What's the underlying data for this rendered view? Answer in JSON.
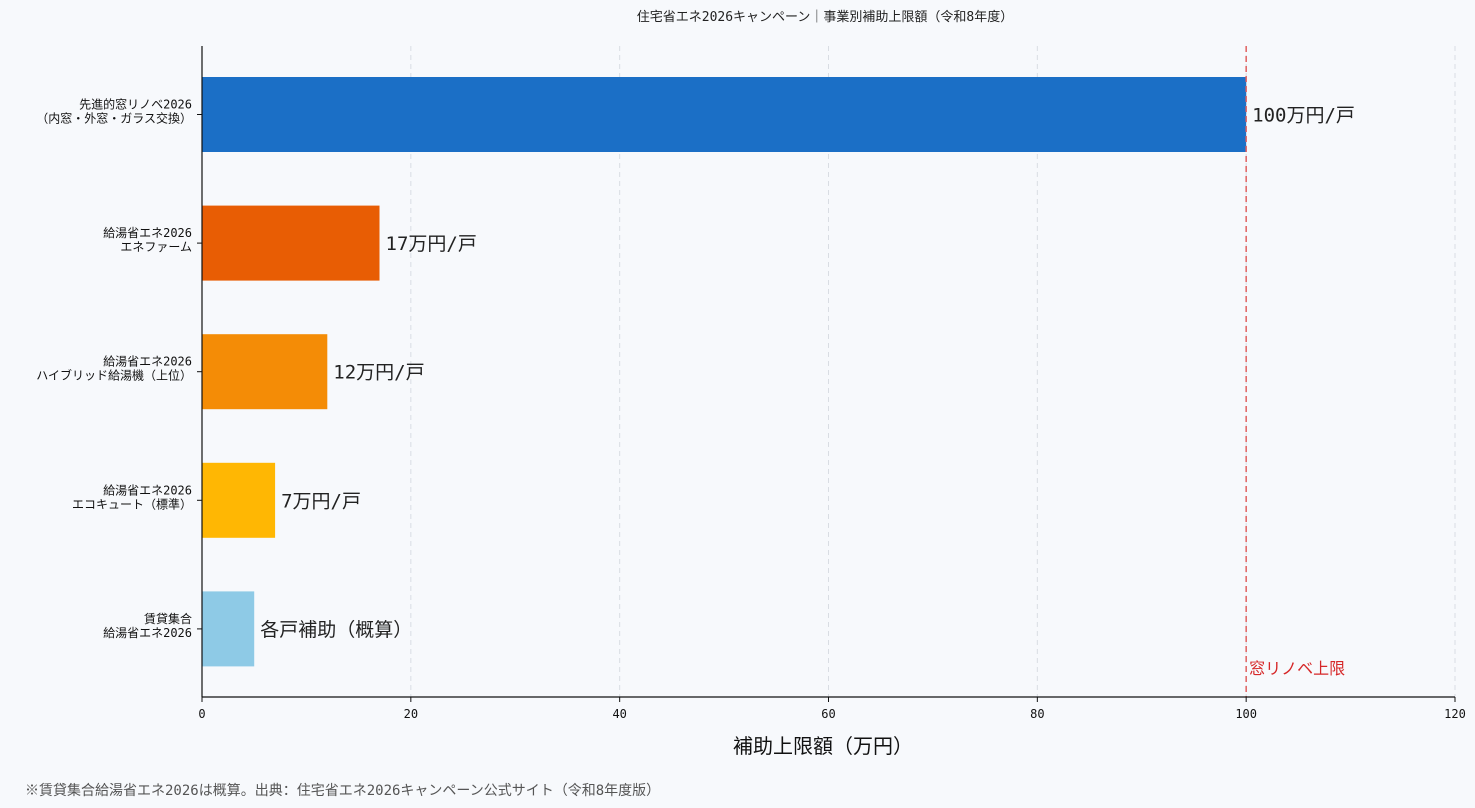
{
  "chart_data": {
    "type": "bar",
    "orientation": "horizontal",
    "title": "住宅省エネ2026キャンペーン｜事業別補助上限額（令和8年度）",
    "xlabel": "補助上限額（万円）",
    "ylabel": "",
    "xlim": [
      0,
      120
    ],
    "xticks": [
      0,
      20,
      40,
      60,
      80,
      100,
      120
    ],
    "grid": "vertical-dashed",
    "categories": [
      [
        "先進的窓リノベ2026",
        "（内窓・外窓・ガラス交換）"
      ],
      [
        "給湯省エネ2026",
        "エネファーム"
      ],
      [
        "給湯省エネ2026",
        "ハイブリッド給湯機（上位）"
      ],
      [
        "給湯省エネ2026",
        "エコキュート（標準）"
      ],
      [
        "賃貸集合",
        "給湯省エネ2026"
      ]
    ],
    "values": [
      100,
      17,
      12,
      7,
      5
    ],
    "value_labels": [
      "100万円/戸",
      "17万円/戸",
      "12万円/戸",
      "7万円/戸",
      "各戸補助（概算）"
    ],
    "colors": [
      "#1b6fc6",
      "#e85d04",
      "#f48c06",
      "#ffb703",
      "#8ecae6"
    ],
    "reference_line": {
      "value": 100,
      "label": "窓リノベ上限",
      "color": "#e06060"
    }
  },
  "footnote": "※賃貸集合給湯省エネ2026は概算。出典：住宅省エネ2026キャンペーン公式サイト（令和8年度版）"
}
